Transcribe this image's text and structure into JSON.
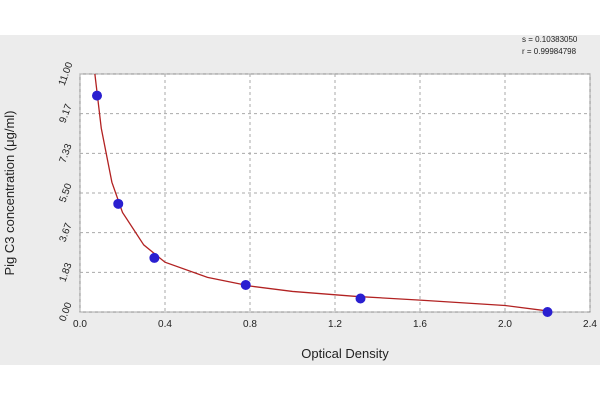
{
  "chart_data": {
    "type": "scatter",
    "x_label": "Optical Density",
    "y_label": "Pig C3 concentration (μg/ml)",
    "annotations": [
      "s = 0.10383050",
      "r = 0.99984798"
    ],
    "series": [
      {
        "style": "line",
        "color": "#b22222",
        "x": [
          0.07,
          0.1,
          0.15,
          0.2,
          0.3,
          0.4,
          0.6,
          0.8,
          1.0,
          1.3,
          1.6,
          2.0,
          2.2
        ],
        "values": [
          11.0,
          8.5,
          6.0,
          4.6,
          3.1,
          2.3,
          1.6,
          1.2,
          0.95,
          0.72,
          0.55,
          0.3,
          0.05
        ]
      },
      {
        "style": "marker",
        "color": "#2a1fd0",
        "x": [
          0.08,
          0.18,
          0.35,
          0.78,
          1.32,
          2.2
        ],
        "values": [
          10,
          5,
          2.5,
          1.25,
          0.625,
          0
        ]
      }
    ],
    "xlim": [
      0,
      2.4
    ],
    "xticks": [
      {
        "value": 0,
        "label": "0.0"
      },
      0.4,
      0.8,
      1.2,
      1.6,
      {
        "value": 2,
        "label": "2.0"
      },
      2.4
    ],
    "ylim": [
      0,
      11
    ],
    "yticks": [
      {
        "value": 0,
        "label": "0.00"
      },
      {
        "value": 1.83,
        "label": "1.83"
      },
      {
        "value": 3.67,
        "label": "3.67"
      },
      {
        "value": 5.5,
        "label": "5.50"
      },
      {
        "value": 7.33,
        "label": "7.33"
      },
      {
        "value": 9.17,
        "label": "9.17"
      },
      {
        "value": 11,
        "label": "11.00"
      }
    ],
    "grid": true
  }
}
